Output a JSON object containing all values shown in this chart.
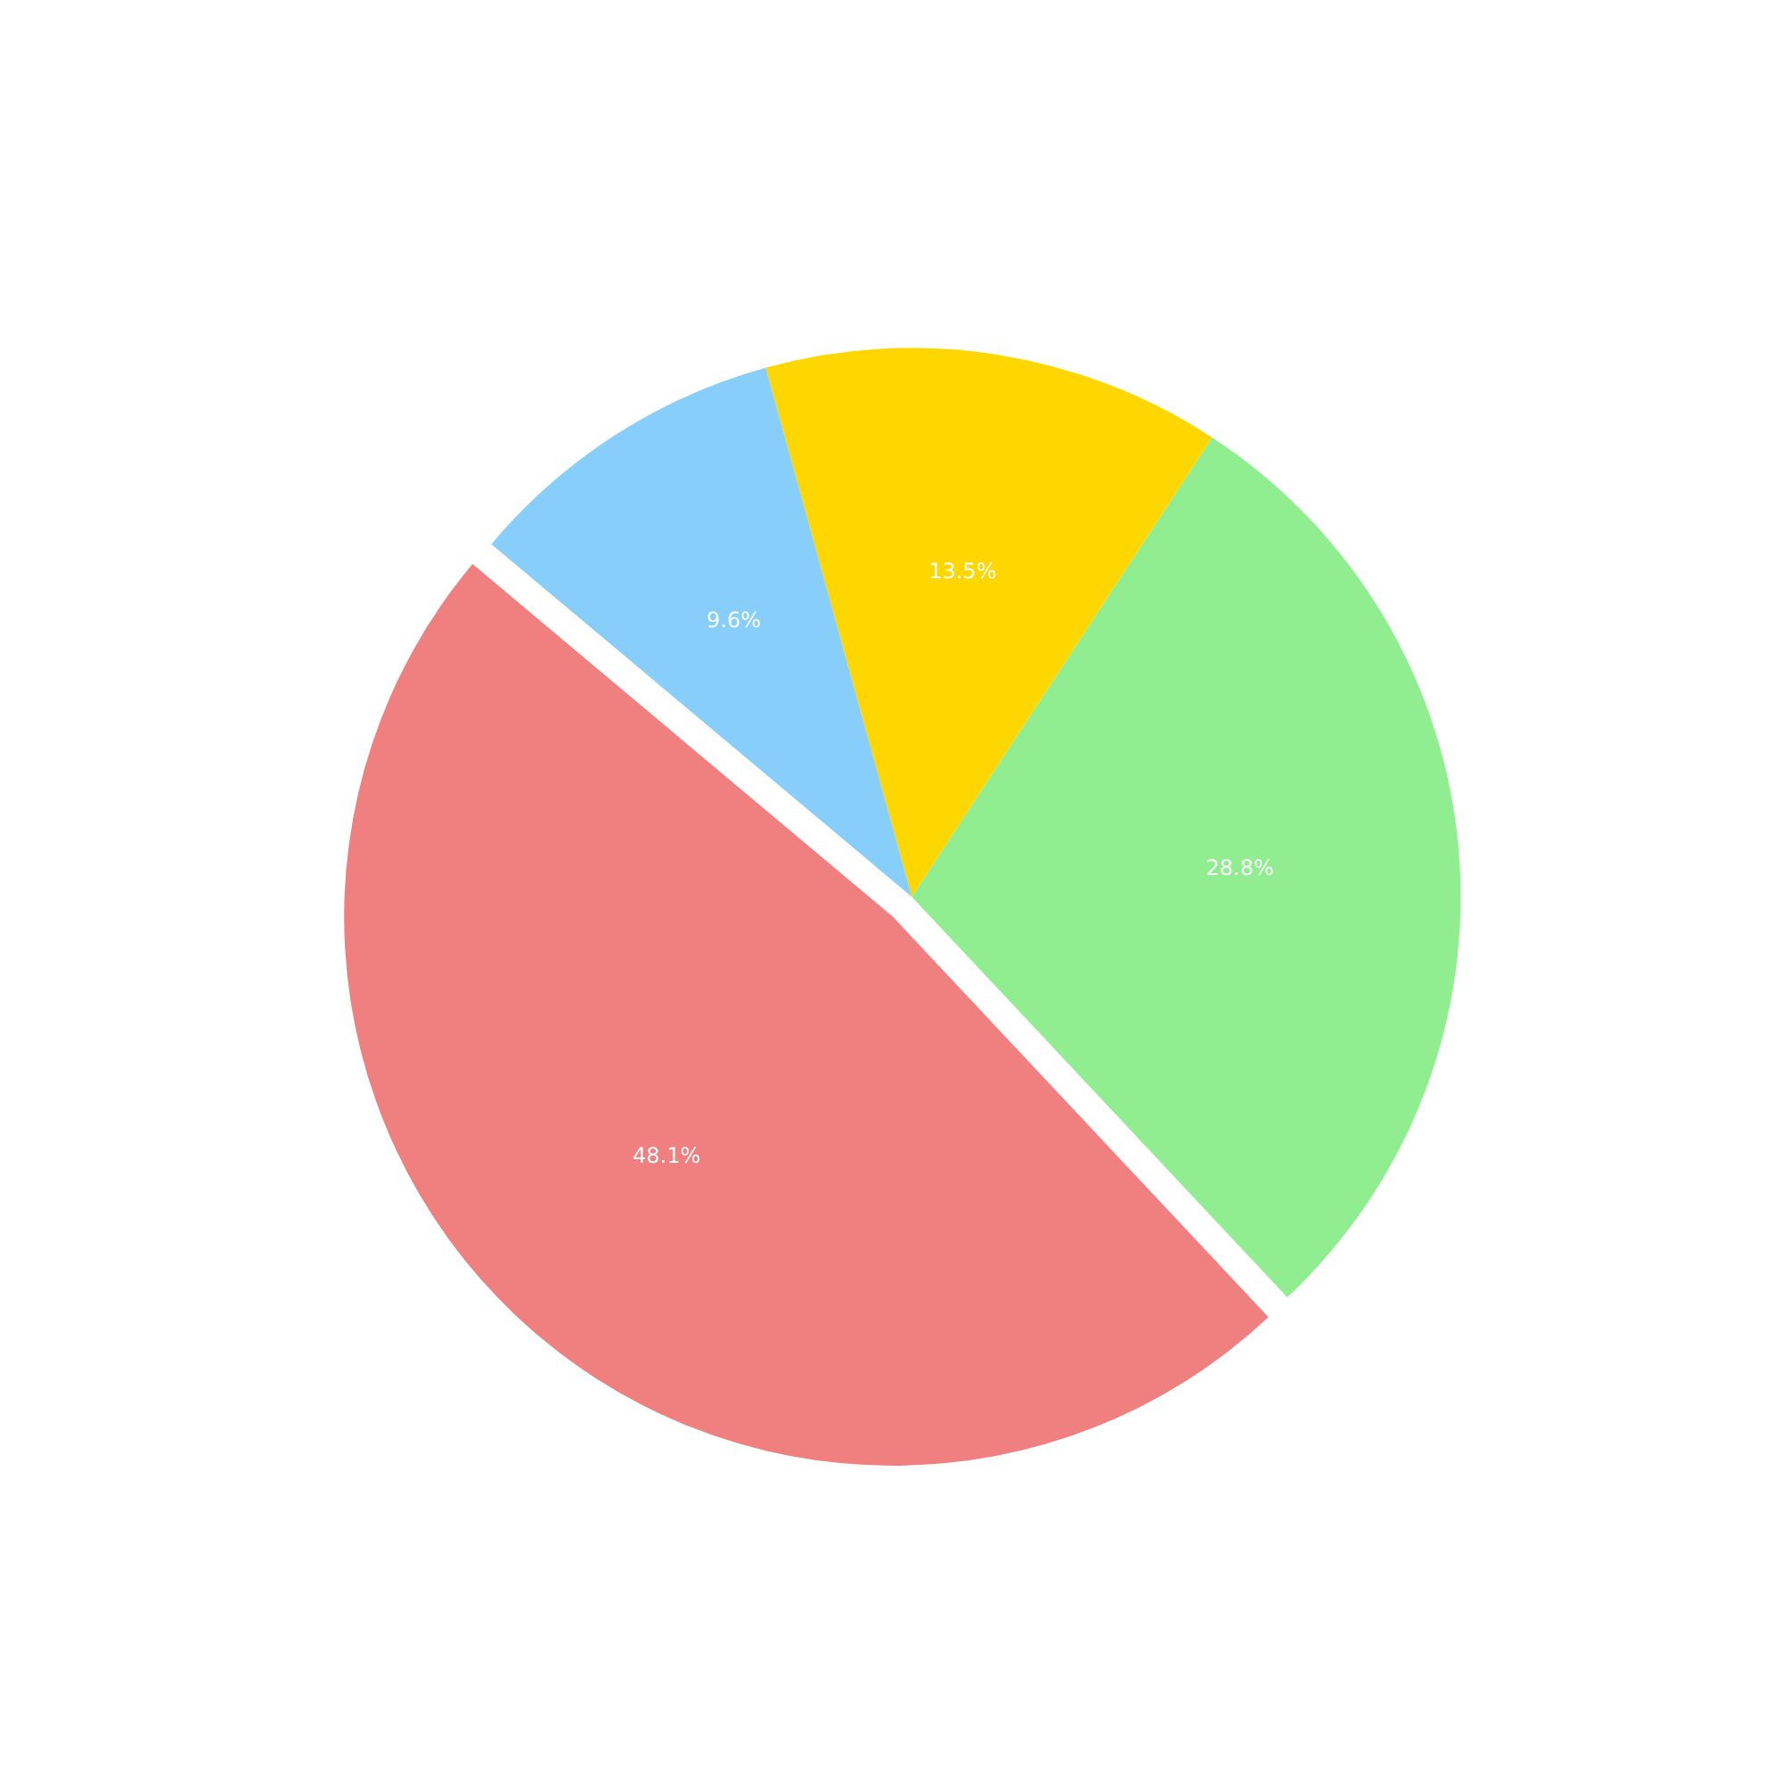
{
  "chart_data": {
    "type": "pie",
    "categories": [
      null,
      null,
      null,
      null
    ],
    "values": [
      48.1,
      28.8,
      13.5,
      9.6
    ],
    "colors": [
      "#f08080",
      "#90ee90",
      "#ffd700",
      "#87cefa"
    ],
    "value_labels": [
      "48.1%",
      "28.8%",
      "13.5%",
      "9.6%"
    ]
  }
}
